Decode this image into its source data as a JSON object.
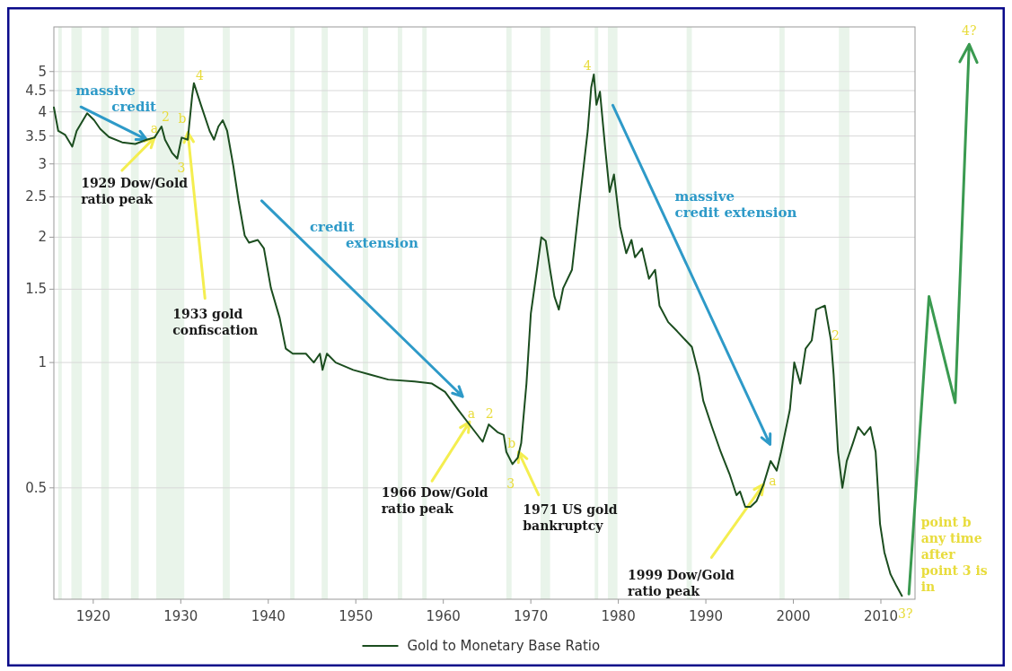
{
  "chart_data": {
    "type": "line",
    "log": "y",
    "grid": "y",
    "legend": "bottom",
    "line_style": "solid",
    "marker": "none",
    "xlim": [
      1915.5,
      2013.9
    ],
    "ylim": [
      0.27,
      6.4
    ],
    "xticks": [
      1920,
      1930,
      1940,
      1950,
      1960,
      1970,
      1980,
      1990,
      2000,
      2010
    ],
    "yticks": [
      0.5,
      1,
      1.5,
      2,
      2.5,
      3,
      3.5,
      4,
      4.5,
      5
    ],
    "series": [
      {
        "name": "Gold to Monetary Base Ratio",
        "color": "#1b4d1f",
        "x": [
          1915.5,
          1916.0,
          1916.8,
          1917.6,
          1918.1,
          1919.3,
          1920.1,
          1920.8,
          1921.8,
          1923.3,
          1924.8,
          1926.1,
          1927.0,
          1927.8,
          1928.2,
          1929.0,
          1929.6,
          1930.1,
          1930.8,
          1931.3,
          1931.5,
          1932.3,
          1933.3,
          1933.8,
          1934.3,
          1934.8,
          1935.3,
          1936.0,
          1936.6,
          1937.3,
          1937.8,
          1938.8,
          1939.5,
          1940.3,
          1941.3,
          1942.0,
          1942.8,
          1944.3,
          1945.2,
          1945.9,
          1946.2,
          1946.7,
          1947.7,
          1949.7,
          1951.7,
          1953.7,
          1956.7,
          1958.7,
          1960.2,
          1961.7,
          1963.2,
          1964.5,
          1965.2,
          1966.2,
          1966.9,
          1967.2,
          1967.9,
          1968.5,
          1968.9,
          1969.5,
          1970.0,
          1970.7,
          1971.2,
          1971.7,
          1972.2,
          1972.7,
          1973.2,
          1973.7,
          1974.7,
          1975.7,
          1976.5,
          1976.9,
          1977.2,
          1977.5,
          1977.9,
          1978.5,
          1979.0,
          1979.5,
          1980.2,
          1980.9,
          1981.5,
          1981.9,
          1982.7,
          1983.5,
          1984.2,
          1984.7,
          1985.7,
          1986.7,
          1987.7,
          1988.4,
          1989.2,
          1989.7,
          1990.7,
          1991.7,
          1992.7,
          1993.5,
          1993.9,
          1994.5,
          1995.1,
          1995.8,
          1996.6,
          1997.4,
          1998.1,
          1998.6,
          1999.6,
          2000.1,
          2000.8,
          2001.4,
          2002.1,
          2002.6,
          2003.6,
          2004.3,
          2004.6,
          2005.1,
          2005.6,
          2006.1,
          2006.8,
          2007.4,
          2008.1,
          2008.8,
          2009.4,
          2009.9,
          2010.4,
          2011.1,
          2011.8,
          2012.4
        ],
        "values": [
          4.1,
          3.6,
          3.52,
          3.3,
          3.6,
          3.97,
          3.82,
          3.64,
          3.48,
          3.38,
          3.35,
          3.43,
          3.47,
          3.69,
          3.43,
          3.19,
          3.09,
          3.47,
          3.43,
          4.37,
          4.69,
          4.16,
          3.6,
          3.43,
          3.69,
          3.82,
          3.6,
          2.97,
          2.45,
          2.02,
          1.94,
          1.97,
          1.88,
          1.51,
          1.28,
          1.08,
          1.05,
          1.05,
          1.0,
          1.05,
          0.96,
          1.05,
          1.0,
          0.96,
          0.935,
          0.91,
          0.9,
          0.89,
          0.85,
          0.77,
          0.7,
          0.645,
          0.71,
          0.68,
          0.67,
          0.61,
          0.57,
          0.59,
          0.64,
          0.89,
          1.31,
          1.67,
          2.0,
          1.96,
          1.67,
          1.44,
          1.34,
          1.51,
          1.67,
          2.57,
          3.6,
          4.58,
          4.92,
          4.16,
          4.47,
          3.27,
          2.57,
          2.83,
          2.12,
          1.83,
          1.97,
          1.79,
          1.88,
          1.59,
          1.67,
          1.37,
          1.25,
          1.19,
          1.13,
          1.09,
          0.935,
          0.81,
          0.7,
          0.61,
          0.54,
          0.48,
          0.49,
          0.45,
          0.45,
          0.465,
          0.51,
          0.58,
          0.55,
          0.61,
          0.77,
          1.0,
          0.89,
          1.08,
          1.13,
          1.34,
          1.37,
          1.13,
          0.935,
          0.61,
          0.5,
          0.58,
          0.64,
          0.7,
          0.67,
          0.7,
          0.61,
          0.41,
          0.35,
          0.31,
          0.29,
          0.275
        ]
      }
    ],
    "bands": [
      {
        "axis": "x",
        "from": 1916.0,
        "to": 1916.4,
        "color": "#e9f4ea"
      },
      {
        "axis": "x",
        "from": 1917.5,
        "to": 1918.7,
        "color": "#e9f4ea"
      },
      {
        "axis": "x",
        "from": 1920.9,
        "to": 1921.8,
        "color": "#e9f4ea"
      },
      {
        "axis": "x",
        "from": 1924.3,
        "to": 1925.2,
        "color": "#e9f4ea"
      },
      {
        "axis": "x",
        "from": 1927.2,
        "to": 1930.4,
        "color": "#e9f4ea"
      },
      {
        "axis": "x",
        "from": 1934.8,
        "to": 1935.6,
        "color": "#e9f4ea"
      },
      {
        "axis": "x",
        "from": 1942.5,
        "to": 1943.0,
        "color": "#e9f4ea"
      },
      {
        "axis": "x",
        "from": 1946.1,
        "to": 1946.8,
        "color": "#e9f4ea"
      },
      {
        "axis": "x",
        "from": 1950.8,
        "to": 1951.4,
        "color": "#e9f4ea"
      },
      {
        "axis": "x",
        "from": 1954.8,
        "to": 1955.3,
        "color": "#e9f4ea"
      },
      {
        "axis": "x",
        "from": 1957.6,
        "to": 1958.1,
        "color": "#e9f4ea"
      },
      {
        "axis": "x",
        "from": 1967.2,
        "to": 1967.8,
        "color": "#e9f4ea"
      },
      {
        "axis": "x",
        "from": 1971.1,
        "to": 1972.2,
        "color": "#e9f4ea"
      },
      {
        "axis": "x",
        "from": 1977.3,
        "to": 1977.7,
        "color": "#e9f4ea"
      },
      {
        "axis": "x",
        "from": 1978.8,
        "to": 1979.9,
        "color": "#e9f4ea"
      },
      {
        "axis": "x",
        "from": 1987.8,
        "to": 1988.4,
        "color": "#e9f4ea"
      },
      {
        "axis": "x",
        "from": 1998.4,
        "to": 1999.0,
        "color": "#e9f4ea"
      },
      {
        "axis": "x",
        "from": 2005.2,
        "to": 2006.4,
        "color": "#e9f4ea"
      }
    ],
    "annotations": [
      {
        "text": "massive credit",
        "x": 1926.1,
        "y": 3.43
      },
      "a",
      "2",
      "b",
      "3",
      "4",
      {
        "text": "1929 Dow/Gold ratio peak",
        "x": 1927.0,
        "y": 3.47
      },
      {
        "text": "1933 gold confiscation",
        "x": 1930.8,
        "y": 3.57
      },
      "credit extension",
      "a",
      "2",
      {
        "text": "1966 Dow/Gold ratio peak",
        "x": 1963.0,
        "y": 0.72
      },
      "b",
      "3",
      {
        "text": "1971 US gold bankruptcy",
        "x": 1968.6,
        "y": 0.61
      },
      "4",
      "massive credit extension",
      "a",
      {
        "text": "1999 Dow/Gold ratio peak",
        "x": 1996.6,
        "y": 0.51
      },
      "2",
      "3?",
      "4?",
      "point b any time after point 3 is in"
    ]
  }
}
